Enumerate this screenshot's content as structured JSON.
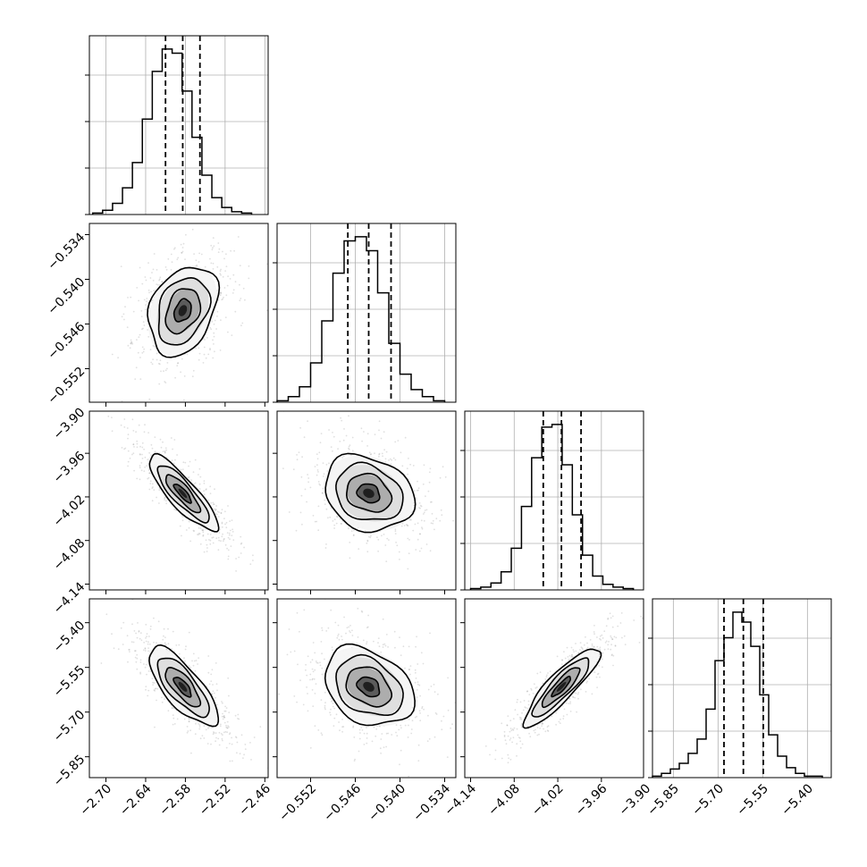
{
  "chart_data": {
    "type": "corner",
    "parameters": [
      {
        "range": [
          -2.725,
          -2.455
        ],
        "ticks": [
          -2.7,
          -2.64,
          -2.58,
          -2.52,
          -2.46
        ],
        "tick_labels": [
          "−2.70",
          "−2.64",
          "−2.58",
          "−2.52",
          "−2.46"
        ],
        "quantiles": [
          -2.61,
          -2.584,
          -2.558
        ],
        "hist_bins": [
          -2.72,
          -2.705,
          -2.69,
          -2.675,
          -2.66,
          -2.645,
          -2.63,
          -2.615,
          -2.6,
          -2.585,
          -2.57,
          -2.555,
          -2.54,
          -2.525,
          -2.51,
          -2.495,
          -2.48,
          -2.465
        ],
        "hist_counts": [
          1,
          3,
          8,
          19,
          37,
          68,
          102,
          118,
          115,
          88,
          55,
          28,
          12,
          5,
          2,
          1
        ]
      },
      {
        "range": [
          -0.5565,
          -0.5325
        ],
        "ticks": [
          -0.534,
          -0.54,
          -0.546,
          -0.552
        ],
        "tick_labels": [
          "−0.534",
          "−0.540",
          "−0.546",
          "−0.552"
        ],
        "x_tick_labels": [
          "−0.552",
          "−0.546",
          "−0.540",
          "−0.534"
        ],
        "x_ticks": [
          -0.552,
          -0.546,
          -0.54,
          -0.534
        ],
        "quantiles": [
          -0.547,
          -0.5442,
          -0.5412
        ],
        "hist_bins": [
          -0.5565,
          -0.555,
          -0.5535,
          -0.552,
          -0.5505,
          -0.549,
          -0.5475,
          -0.546,
          -0.5445,
          -0.543,
          -0.5415,
          -0.54,
          -0.5385,
          -0.537,
          -0.5355,
          -0.534,
          -0.5325
        ],
        "hist_counts": [
          1,
          4,
          11,
          28,
          58,
          92,
          115,
          118,
          108,
          78,
          42,
          20,
          9,
          4,
          1
        ]
      },
      {
        "range": [
          -4.148,
          -3.902
        ],
        "ticks": [
          -3.9,
          -3.96,
          -4.02,
          -4.08,
          -4.14
        ],
        "tick_labels": [
          "−3.90",
          "−3.96",
          "−4.02",
          "−4.08",
          "−4.14"
        ],
        "x_ticks": [
          -4.14,
          -4.08,
          -4.02,
          -3.96,
          -3.9
        ],
        "x_tick_labels": [
          "−4.14",
          "−4.08",
          "−4.02",
          "−3.96",
          "−3.90"
        ],
        "quantiles": [
          -4.04,
          -4.015,
          -3.988
        ],
        "hist_bins": [
          -4.14,
          -4.126,
          -4.112,
          -4.098,
          -4.084,
          -4.07,
          -4.056,
          -4.042,
          -4.028,
          -4.014,
          -4.0,
          -3.986,
          -3.972,
          -3.958,
          -3.944,
          -3.93,
          -3.916,
          -3.902
        ],
        "hist_counts": [
          1,
          2,
          5,
          13,
          30,
          60,
          95,
          117,
          119,
          90,
          54,
          25,
          10,
          4,
          2,
          1
        ]
      },
      {
        "range": [
          -5.92,
          -5.32
        ],
        "ticks": [
          -5.4,
          -5.55,
          -5.7,
          -5.85
        ],
        "tick_labels": [
          "−5.40",
          "−5.55",
          "−5.70",
          "−5.85"
        ],
        "x_ticks": [
          -5.85,
          -5.7,
          -5.55,
          -5.4
        ],
        "x_tick_labels": [
          "−5.85",
          "−5.70",
          "−5.55",
          "−5.40"
        ],
        "quantiles": [
          -5.68,
          -5.615,
          -5.548
        ],
        "hist_bins": [
          -5.92,
          -5.89,
          -5.86,
          -5.83,
          -5.8,
          -5.77,
          -5.74,
          -5.71,
          -5.68,
          -5.65,
          -5.62,
          -5.59,
          -5.56,
          -5.53,
          -5.5,
          -5.47,
          -5.44,
          -5.41,
          -5.38,
          -5.35
        ],
        "hist_counts": [
          1,
          3,
          6,
          10,
          17,
          27,
          48,
          82,
          98,
          116,
          109,
          92,
          58,
          30,
          15,
          7,
          3,
          1,
          1
        ]
      }
    ],
    "pair_panels": [
      {
        "row": 1,
        "col": 0,
        "mean": [
          -2.584,
          -0.5442
        ],
        "sd": [
          0.026,
          0.003
        ],
        "corr": 0.3
      },
      {
        "row": 2,
        "col": 0,
        "mean": [
          -2.584,
          -4.015
        ],
        "sd": [
          0.026,
          0.026
        ],
        "corr": -0.85
      },
      {
        "row": 2,
        "col": 1,
        "mean": [
          -0.5442,
          -4.015
        ],
        "sd": [
          0.003,
          0.026
        ],
        "corr": -0.2
      },
      {
        "row": 3,
        "col": 0,
        "mean": [
          -2.584,
          -5.615
        ],
        "sd": [
          0.026,
          0.066
        ],
        "corr": -0.75
      },
      {
        "row": 3,
        "col": 1,
        "mean": [
          -0.5442,
          -5.615
        ],
        "sd": [
          0.003,
          0.066
        ],
        "corr": -0.3
      },
      {
        "row": 3,
        "col": 2,
        "mean": [
          -4.015,
          -5.615
        ],
        "sd": [
          0.026,
          0.066
        ],
        "corr": 0.88
      }
    ],
    "contour_levels_sigma": [
      0.5,
      1.0,
      1.5,
      2.0
    ],
    "grid": true,
    "colors": {
      "line": "#000000",
      "scatter": "#555555",
      "grid": "#b0b0b0"
    }
  }
}
